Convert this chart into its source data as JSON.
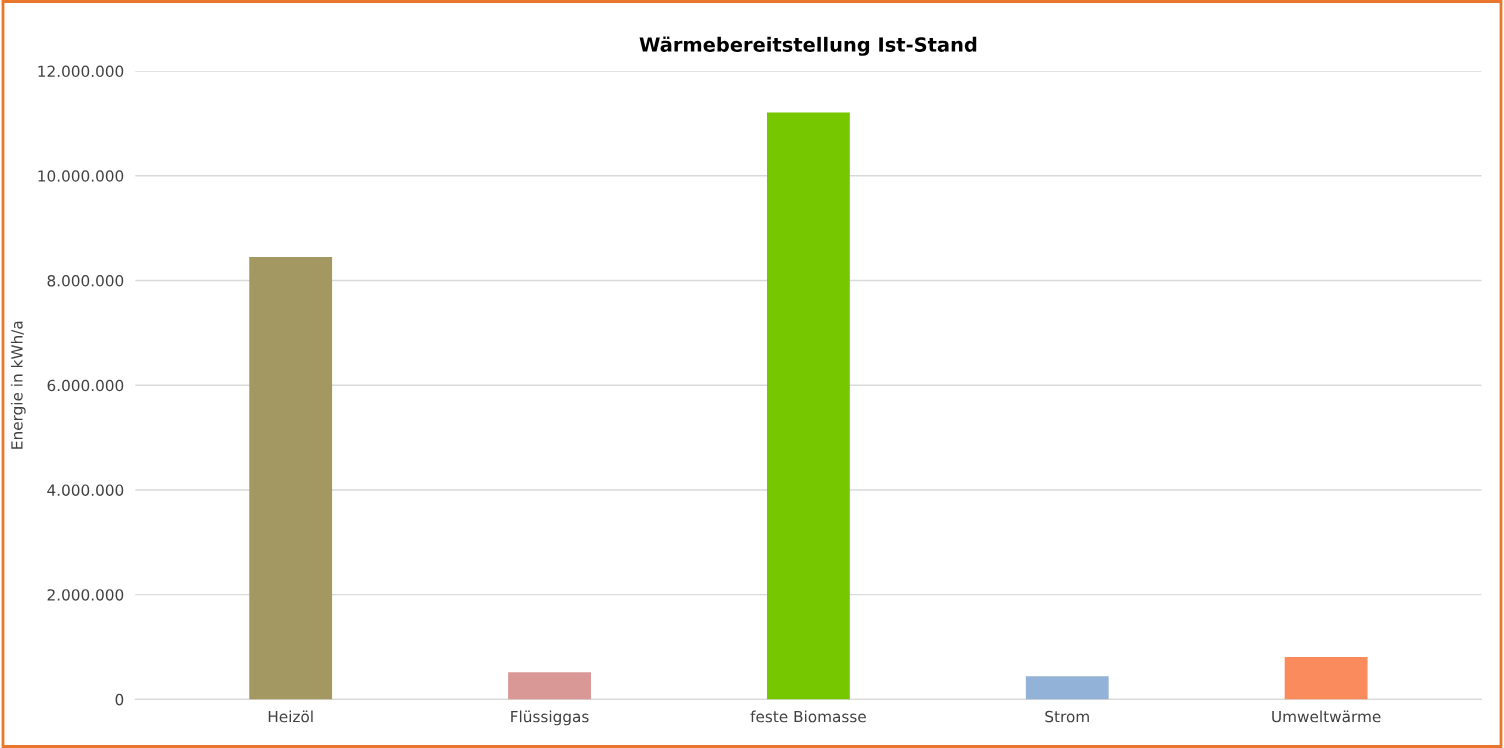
{
  "chart_data": {
    "type": "bar",
    "title": "Wärmebereitstellung Ist-Stand",
    "ylabel": "Energie in kWh/a",
    "categories": [
      "Heizöl",
      "Flüssiggas",
      "feste Biomasse",
      "Strom",
      "Umweltwärme"
    ],
    "values": [
      8450000,
      520000,
      11210000,
      440000,
      810000
    ],
    "colors": [
      "#a39862",
      "#d99795",
      "#77c700",
      "#93b2d8",
      "#f98b5d"
    ],
    "ylim": [
      0,
      12000000
    ],
    "yticks": [
      {
        "value": 0,
        "label": "0"
      },
      {
        "value": 2000000,
        "label": "2.000.000"
      },
      {
        "value": 4000000,
        "label": "4.000.000"
      },
      {
        "value": 6000000,
        "label": "6.000.000"
      },
      {
        "value": 8000000,
        "label": "8.000.000"
      },
      {
        "value": 10000000,
        "label": "10.000.000"
      },
      {
        "value": 12000000,
        "label": "12.000.000"
      }
    ],
    "grid": "y",
    "legend": false
  }
}
